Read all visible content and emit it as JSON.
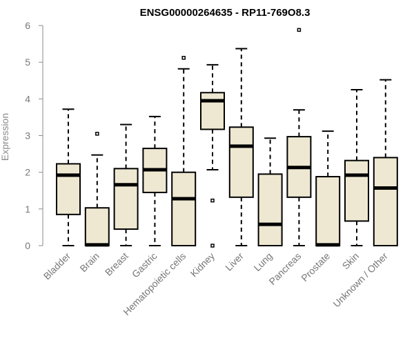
{
  "chart_data": {
    "type": "boxplot",
    "title": "ENSG00000264635 - RP11-769O8.3",
    "xlabel": "",
    "ylabel": "Expression",
    "ylim": [
      0,
      6
    ],
    "yticks": [
      0,
      1,
      2,
      3,
      4,
      5,
      6
    ],
    "categories": [
      "Bladder",
      "Brain",
      "Breast",
      "Gastric",
      "Hematopoietic cells",
      "Kidney",
      "Liver",
      "Lung",
      "Pancreas",
      "Prostate",
      "Skin",
      "Unknown / Other"
    ],
    "boxes": [
      {
        "name": "Bladder",
        "whisker_low": 0.0,
        "q1": 0.85,
        "median": 1.92,
        "q3": 2.23,
        "whisker_high": 3.72,
        "outliers": []
      },
      {
        "name": "Brain",
        "whisker_low": 0.0,
        "q1": 0.0,
        "median": 0.02,
        "q3": 1.03,
        "whisker_high": 2.47,
        "outliers": [
          3.05
        ]
      },
      {
        "name": "Breast",
        "whisker_low": 0.0,
        "q1": 0.45,
        "median": 1.66,
        "q3": 2.1,
        "whisker_high": 3.3,
        "outliers": []
      },
      {
        "name": "Gastric",
        "whisker_low": 0.0,
        "q1": 1.45,
        "median": 2.07,
        "q3": 2.65,
        "whisker_high": 3.52,
        "outliers": []
      },
      {
        "name": "Hematopoietic cells",
        "whisker_low": 0.0,
        "q1": 0.0,
        "median": 1.28,
        "q3": 2.0,
        "whisker_high": 4.82,
        "outliers": [
          5.12
        ]
      },
      {
        "name": "Kidney",
        "whisker_low": 2.07,
        "q1": 3.17,
        "median": 3.95,
        "q3": 4.17,
        "whisker_high": 4.93,
        "outliers": [
          1.23,
          0.0
        ]
      },
      {
        "name": "Liver",
        "whisker_low": 0.0,
        "q1": 1.32,
        "median": 2.71,
        "q3": 3.23,
        "whisker_high": 5.37,
        "outliers": []
      },
      {
        "name": "Lung",
        "whisker_low": 0.0,
        "q1": 0.0,
        "median": 0.58,
        "q3": 1.95,
        "whisker_high": 2.93,
        "outliers": []
      },
      {
        "name": "Pancreas",
        "whisker_low": 0.0,
        "q1": 1.32,
        "median": 2.13,
        "q3": 2.97,
        "whisker_high": 3.7,
        "outliers": [
          5.88
        ]
      },
      {
        "name": "Prostate",
        "whisker_low": 0.0,
        "q1": 0.0,
        "median": 0.02,
        "q3": 1.88,
        "whisker_high": 3.12,
        "outliers": []
      },
      {
        "name": "Skin",
        "whisker_low": 0.0,
        "q1": 0.67,
        "median": 1.92,
        "q3": 2.32,
        "whisker_high": 4.25,
        "outliers": []
      },
      {
        "name": "Unknown / Other",
        "whisker_low": 0.0,
        "q1": 0.0,
        "median": 1.57,
        "q3": 2.4,
        "whisker_high": 4.52,
        "outliers": []
      }
    ],
    "grid": false,
    "legend": "none"
  }
}
